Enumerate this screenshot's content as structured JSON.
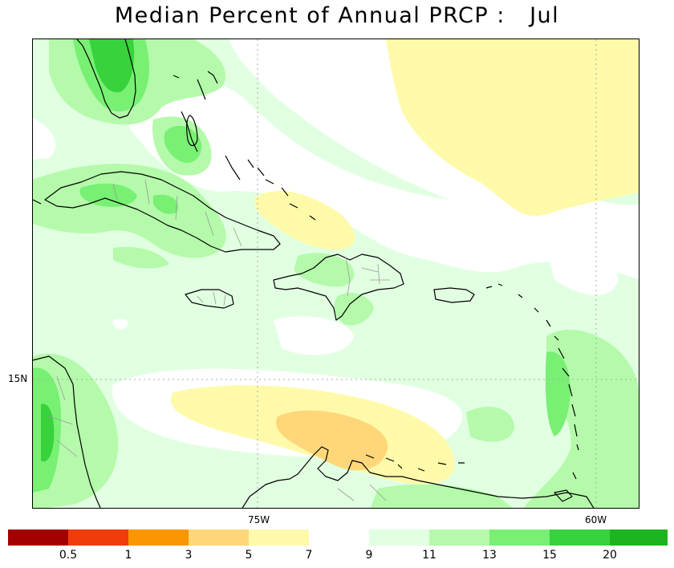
{
  "title": "Median Percent of Annual PRCP :   Jul",
  "map": {
    "lon_labels": [
      "75W",
      "60W"
    ],
    "lat_labels": [
      "15N"
    ]
  },
  "legend": {
    "bins": [
      {
        "color": "#a50000"
      },
      {
        "color": "#f03c0a"
      },
      {
        "color": "#fa9600"
      },
      {
        "color": "#ffd77a"
      },
      {
        "color": "#fffaaa"
      },
      {
        "color": "#ffffff"
      },
      {
        "color": "#e1ffe1"
      },
      {
        "color": "#b4faaa"
      },
      {
        "color": "#78f073"
      },
      {
        "color": "#37d23c"
      },
      {
        "color": "#1eb41e"
      }
    ],
    "tick_labels": [
      "0.5",
      "1",
      "3",
      "5",
      "7",
      "9",
      "11",
      "13",
      "15",
      "20"
    ]
  },
  "colors": {
    "coast": "#000000",
    "borders": "#999999",
    "grid": "#aaaaaa"
  }
}
